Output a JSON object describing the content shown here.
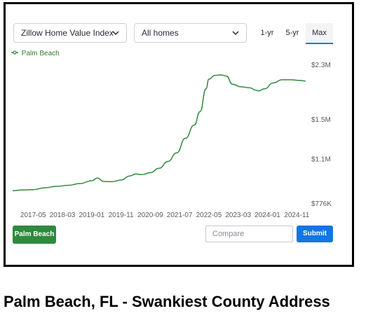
{
  "controls": {
    "index_select": "Zillow Home Value Index",
    "homes_select": "All homes",
    "range_buttons": [
      "1-yr",
      "5-yr",
      "Max"
    ],
    "active_range": "Max"
  },
  "legend": {
    "label": "Palm Beach",
    "color": "#2f8a3e"
  },
  "pill": {
    "label": "Palm Beach"
  },
  "compare": {
    "placeholder": "Compare"
  },
  "submit": {
    "label": "Submit"
  },
  "caption": "Palm Beach, FL - Swankiest County Address",
  "chart_data": {
    "type": "line",
    "title": "",
    "xlabel": "",
    "ylabel": "",
    "y_scale": "log",
    "ylim": [
      776000,
      2300000
    ],
    "y_ticks": [
      {
        "value": 776000,
        "label": "$776K"
      },
      {
        "value": 1100000,
        "label": "$1.1M"
      },
      {
        "value": 1500000,
        "label": "$1.5M"
      },
      {
        "value": 2300000,
        "label": "$2.3M"
      }
    ],
    "x_ticks": [
      "2017-05",
      "2018-03",
      "2019-01",
      "2019-11",
      "2020-09",
      "2021-07",
      "2022-05",
      "2023-03",
      "2024-01",
      "2024-11"
    ],
    "xlim": [
      "2016-10",
      "2025-03"
    ],
    "series": [
      {
        "name": "Palm Beach",
        "color": "#2f8a3e",
        "x": [
          "2016-10",
          "2017-01",
          "2017-05",
          "2017-09",
          "2018-01",
          "2018-05",
          "2018-09",
          "2019-01",
          "2019-03",
          "2019-05",
          "2019-08",
          "2019-11",
          "2020-02",
          "2020-04",
          "2020-06",
          "2020-09",
          "2020-12",
          "2021-03",
          "2021-06",
          "2021-09",
          "2021-12",
          "2022-02",
          "2022-04",
          "2022-05",
          "2022-07",
          "2022-09",
          "2022-11",
          "2023-01",
          "2023-04",
          "2023-07",
          "2023-09",
          "2023-10",
          "2023-12",
          "2024-03",
          "2024-06",
          "2024-09",
          "2024-12",
          "2025-02"
        ],
        "values": [
          855000,
          860000,
          862000,
          875000,
          885000,
          892000,
          905000,
          925000,
          945000,
          920000,
          918000,
          930000,
          960000,
          975000,
          970000,
          985000,
          1020000,
          1075000,
          1150000,
          1290000,
          1430000,
          1590000,
          1900000,
          2050000,
          2110000,
          2120000,
          2100000,
          1970000,
          1930000,
          1915000,
          1880000,
          1870000,
          1900000,
          1990000,
          2040000,
          2040000,
          2030000,
          2020000
        ]
      }
    ]
  }
}
